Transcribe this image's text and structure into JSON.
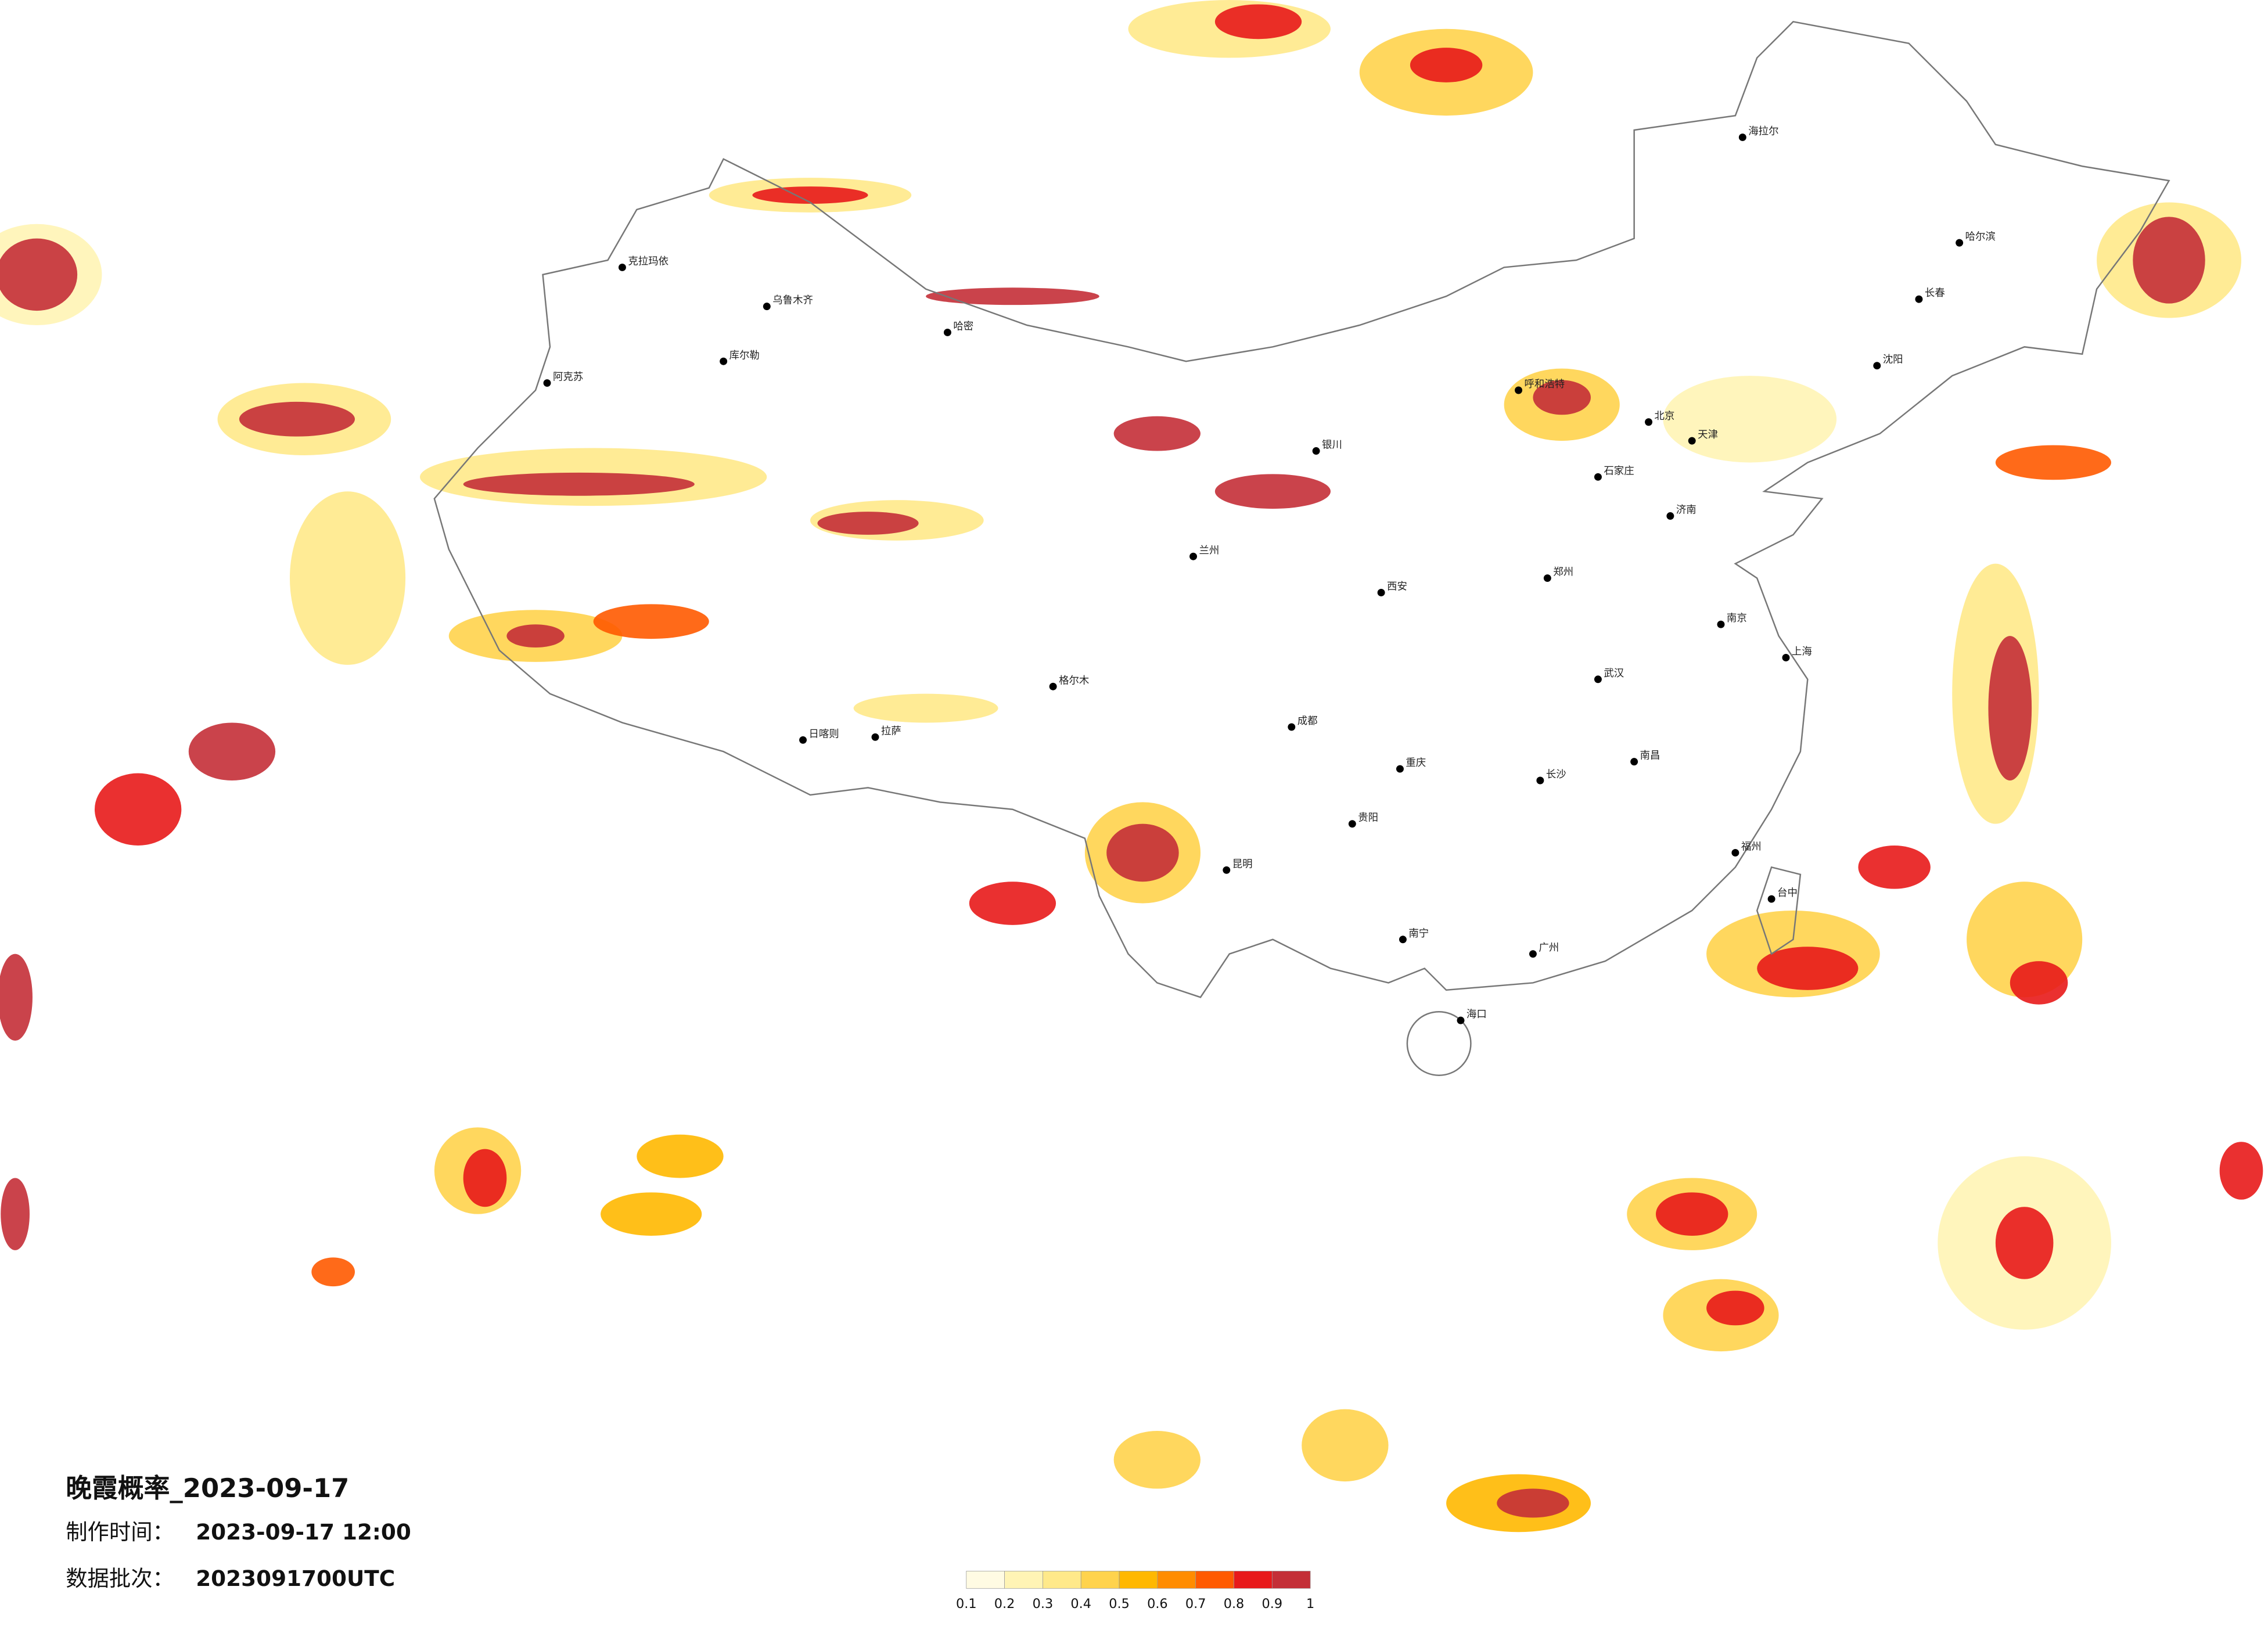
{
  "title": "晚霞概率_2023-09-17",
  "made_label": "制作时间：",
  "made_time": "2023-09-17 12:00",
  "batch_label": "数据批次：",
  "batch": "2023091700UTC",
  "colorbar": {
    "ticks": [
      0.1,
      0.2,
      0.3,
      0.4,
      0.5,
      0.6,
      0.7,
      0.8,
      0.9,
      1
    ],
    "colors": [
      "#fffbe3",
      "#fff4b5",
      "#ffe98a",
      "#ffd34d",
      "#ffb800",
      "#ff8c00",
      "#ff5a00",
      "#e8191a",
      "#c42f37"
    ]
  },
  "cities": [
    "哈尔滨",
    "长春",
    "沈阳",
    "北京",
    "天津",
    "石家庄",
    "济南",
    "郑州",
    "西安",
    "成都",
    "重庆",
    "武汉",
    "南京",
    "上海",
    "长沙",
    "南昌",
    "福州",
    "广州",
    "南宁",
    "昆明",
    "贵阳",
    "兰州",
    "银川",
    "呼和浩特",
    "乌鲁木齐",
    "阿克苏",
    "克拉玛依",
    "库尔勒",
    "哈密",
    "格尔木",
    "拉萨",
    "日喀则",
    "海口",
    "台中",
    "海拉尔"
  ]
}
